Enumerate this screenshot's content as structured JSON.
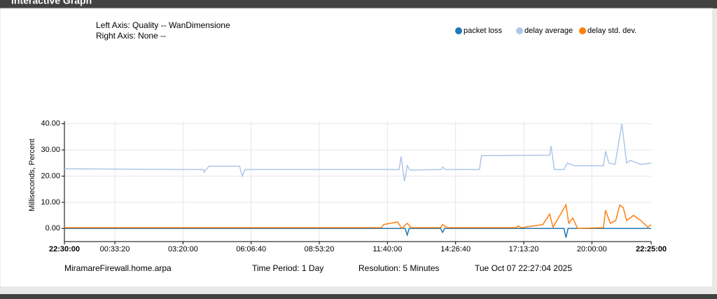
{
  "panel_title": "Interactive Graph",
  "chart_data": {
    "type": "line",
    "left_axis": "Left Axis: Quality -- WanDimensione",
    "right_axis": "Right Axis: None --",
    "ylabel": "Milliseconds, Percent",
    "xlim": [
      0,
      86100
    ],
    "xticks": [
      {
        "value": 0,
        "label": "22:30:00"
      },
      {
        "value": 7400,
        "label": "00:33:20"
      },
      {
        "value": 17400,
        "label": "03:20:00"
      },
      {
        "value": 27400,
        "label": "06:06:40"
      },
      {
        "value": 37400,
        "label": "08:53:20"
      },
      {
        "value": 47400,
        "label": "11:40:00"
      },
      {
        "value": 57400,
        "label": "14:26:40"
      },
      {
        "value": 67400,
        "label": "17:13:20"
      },
      {
        "value": 77400,
        "label": "20:00:00"
      },
      {
        "value": 86100,
        "label": "22:25:00"
      }
    ],
    "ylim": [
      -5,
      41
    ],
    "yticks": [
      {
        "value": 0,
        "label": "0.00"
      },
      {
        "value": 10,
        "label": "10.00"
      },
      {
        "value": 20,
        "label": "20.00"
      },
      {
        "value": 30,
        "label": "30.00"
      },
      {
        "value": 40,
        "label": "40.00"
      }
    ],
    "grid": true,
    "legend": "top-right",
    "series": [
      {
        "name": "packet loss",
        "color": "#1f77b4",
        "x": [
          0,
          50000,
          50300,
          50600,
          55200,
          55500,
          55800,
          73300,
          73600,
          73900,
          86100
        ],
        "values": [
          0,
          0,
          -2.5,
          0,
          0,
          -1.5,
          0,
          0,
          -3.5,
          0,
          0
        ]
      },
      {
        "name": "delay average",
        "color": "#aec7e8",
        "x": [
          0,
          20400,
          20500,
          21200,
          25700,
          26100,
          26500,
          49100,
          49400,
          49900,
          50300,
          50700,
          55300,
          55500,
          55900,
          60900,
          61200,
          71200,
          71400,
          71900,
          73300,
          73800,
          74800,
          79100,
          79400,
          79900,
          80800,
          81800,
          82500,
          83000,
          84600,
          86100
        ],
        "values": [
          22.8,
          22.5,
          21.5,
          23.8,
          23.8,
          20,
          22.5,
          22.5,
          27.5,
          18,
          24,
          22.3,
          22.5,
          23.5,
          22.5,
          22.5,
          27.8,
          28,
          31.5,
          22.5,
          22.5,
          25,
          24,
          24,
          29.5,
          25,
          24.5,
          40,
          25,
          26,
          24.5,
          25
        ]
      },
      {
        "name": "delay std. dev.",
        "color": "#ff7f0e",
        "x": [
          0,
          46500,
          46850,
          48900,
          49500,
          50300,
          50900,
          55200,
          55500,
          56200,
          66300,
          66600,
          67000,
          70200,
          71200,
          71700,
          73600,
          74000,
          74600,
          75300,
          79100,
          79400,
          80100,
          80900,
          81500,
          82000,
          82500,
          83500,
          84600,
          85600,
          86100
        ],
        "values": [
          0.3,
          0.3,
          1.5,
          2.5,
          0,
          2,
          0.3,
          0.3,
          1.5,
          0.3,
          0.3,
          1,
          0.3,
          1.5,
          5.5,
          0.5,
          9,
          2,
          4,
          0,
          0.3,
          7,
          2,
          3,
          9,
          8,
          3,
          5,
          3,
          0.5,
          1.5
        ]
      }
    ]
  },
  "footer": {
    "host": "MiramareFirewall.home.arpa",
    "period": "Time Period: 1 Day",
    "resolution": "Resolution: 5 Minutes",
    "timestamp": "Tue Oct 07 22:27:04 2025"
  }
}
